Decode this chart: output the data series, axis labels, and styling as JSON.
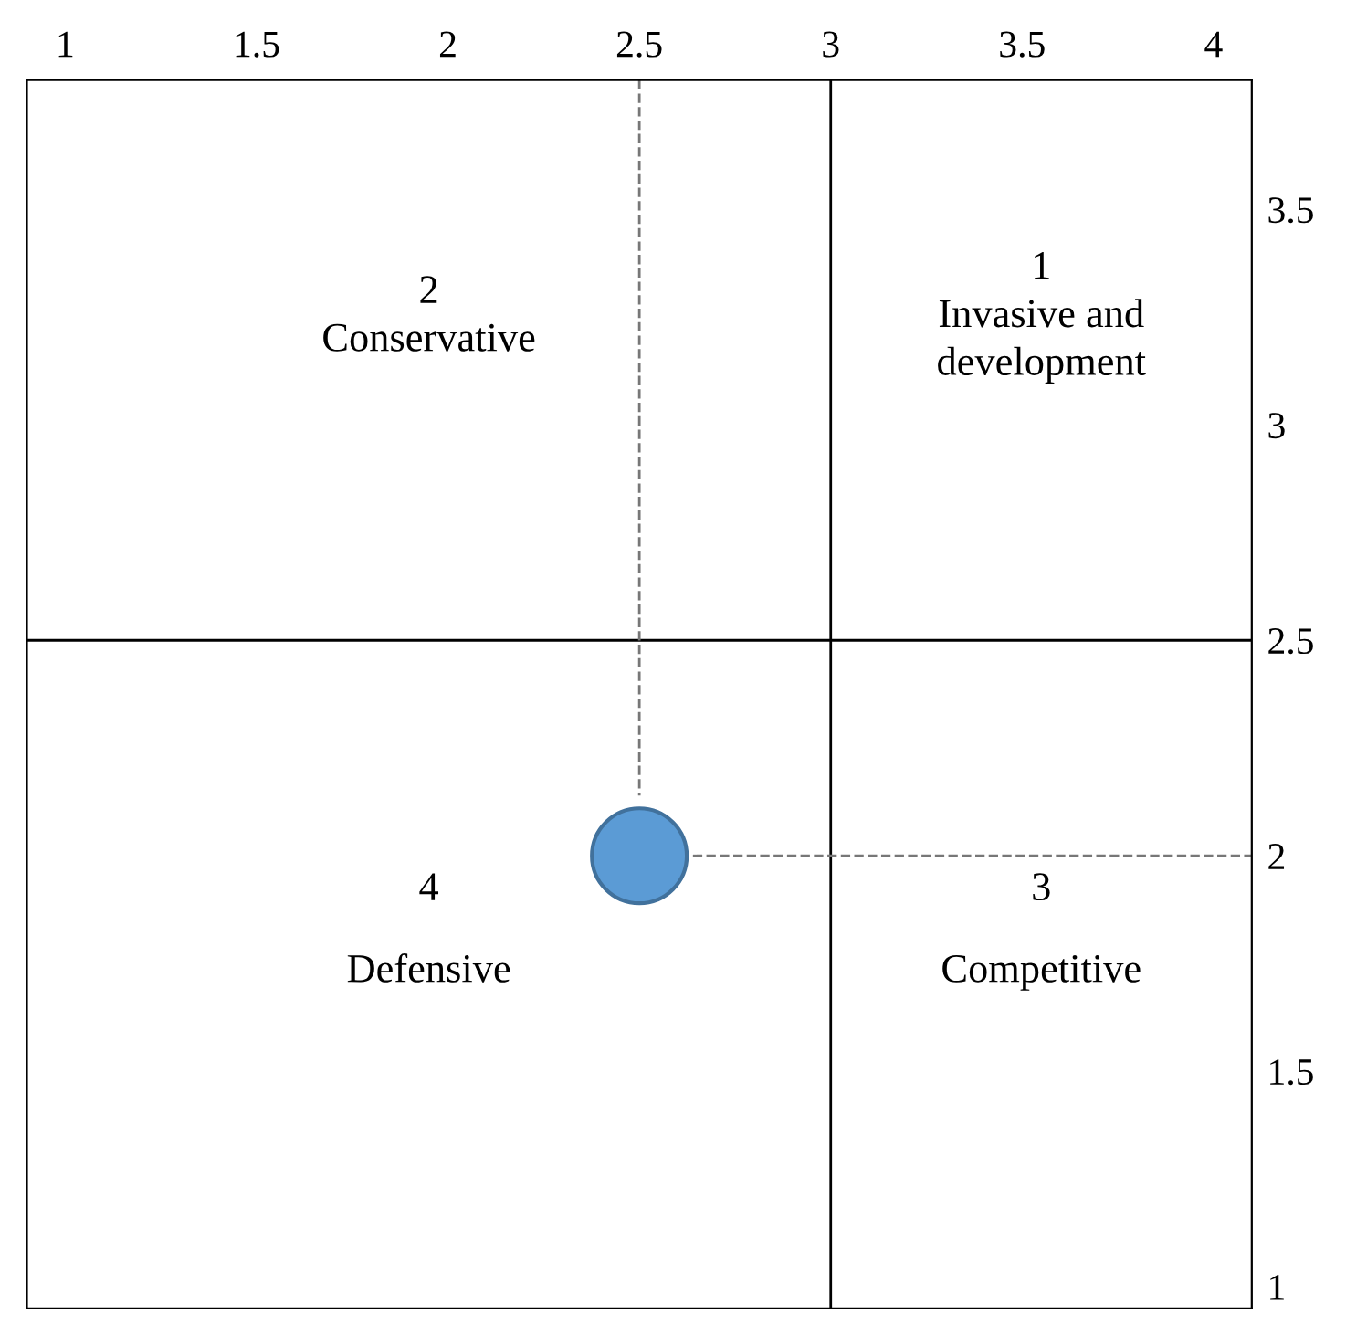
{
  "chart_data": {
    "type": "scatter",
    "xlim": [
      0.9,
      4.1
    ],
    "ylim": [
      0.95,
      3.8
    ],
    "xticks": [
      1,
      1.5,
      2,
      2.5,
      3,
      3.5,
      4
    ],
    "yticks": [
      1,
      1.5,
      2,
      2.5,
      3,
      3.5
    ],
    "series": [
      {
        "type": "line",
        "color": "#777777",
        "line_style": "dashed",
        "marker": "none",
        "x": [
          2.5,
          2.5
        ],
        "values": [
          3.8,
          2.14
        ]
      },
      {
        "type": "line",
        "color": "#777777",
        "line_style": "dashed",
        "marker": "none",
        "x": [
          2.64,
          4.1
        ],
        "values": [
          2,
          2
        ]
      },
      {
        "color": "#5b9bd5",
        "marker": "circle",
        "x": [
          2.5
        ],
        "values": [
          2
        ]
      }
    ],
    "ref_lines": [
      {
        "axis": "x",
        "value": 3,
        "color": "#000000"
      },
      {
        "axis": "y",
        "value": 2.5,
        "color": "#000000"
      }
    ],
    "annotations": [
      "2\nConservative",
      "1\nInvasive and\ndevelopment",
      "4\nDefensive",
      "3\nCompetitive"
    ],
    "grid": false,
    "legend": false
  }
}
